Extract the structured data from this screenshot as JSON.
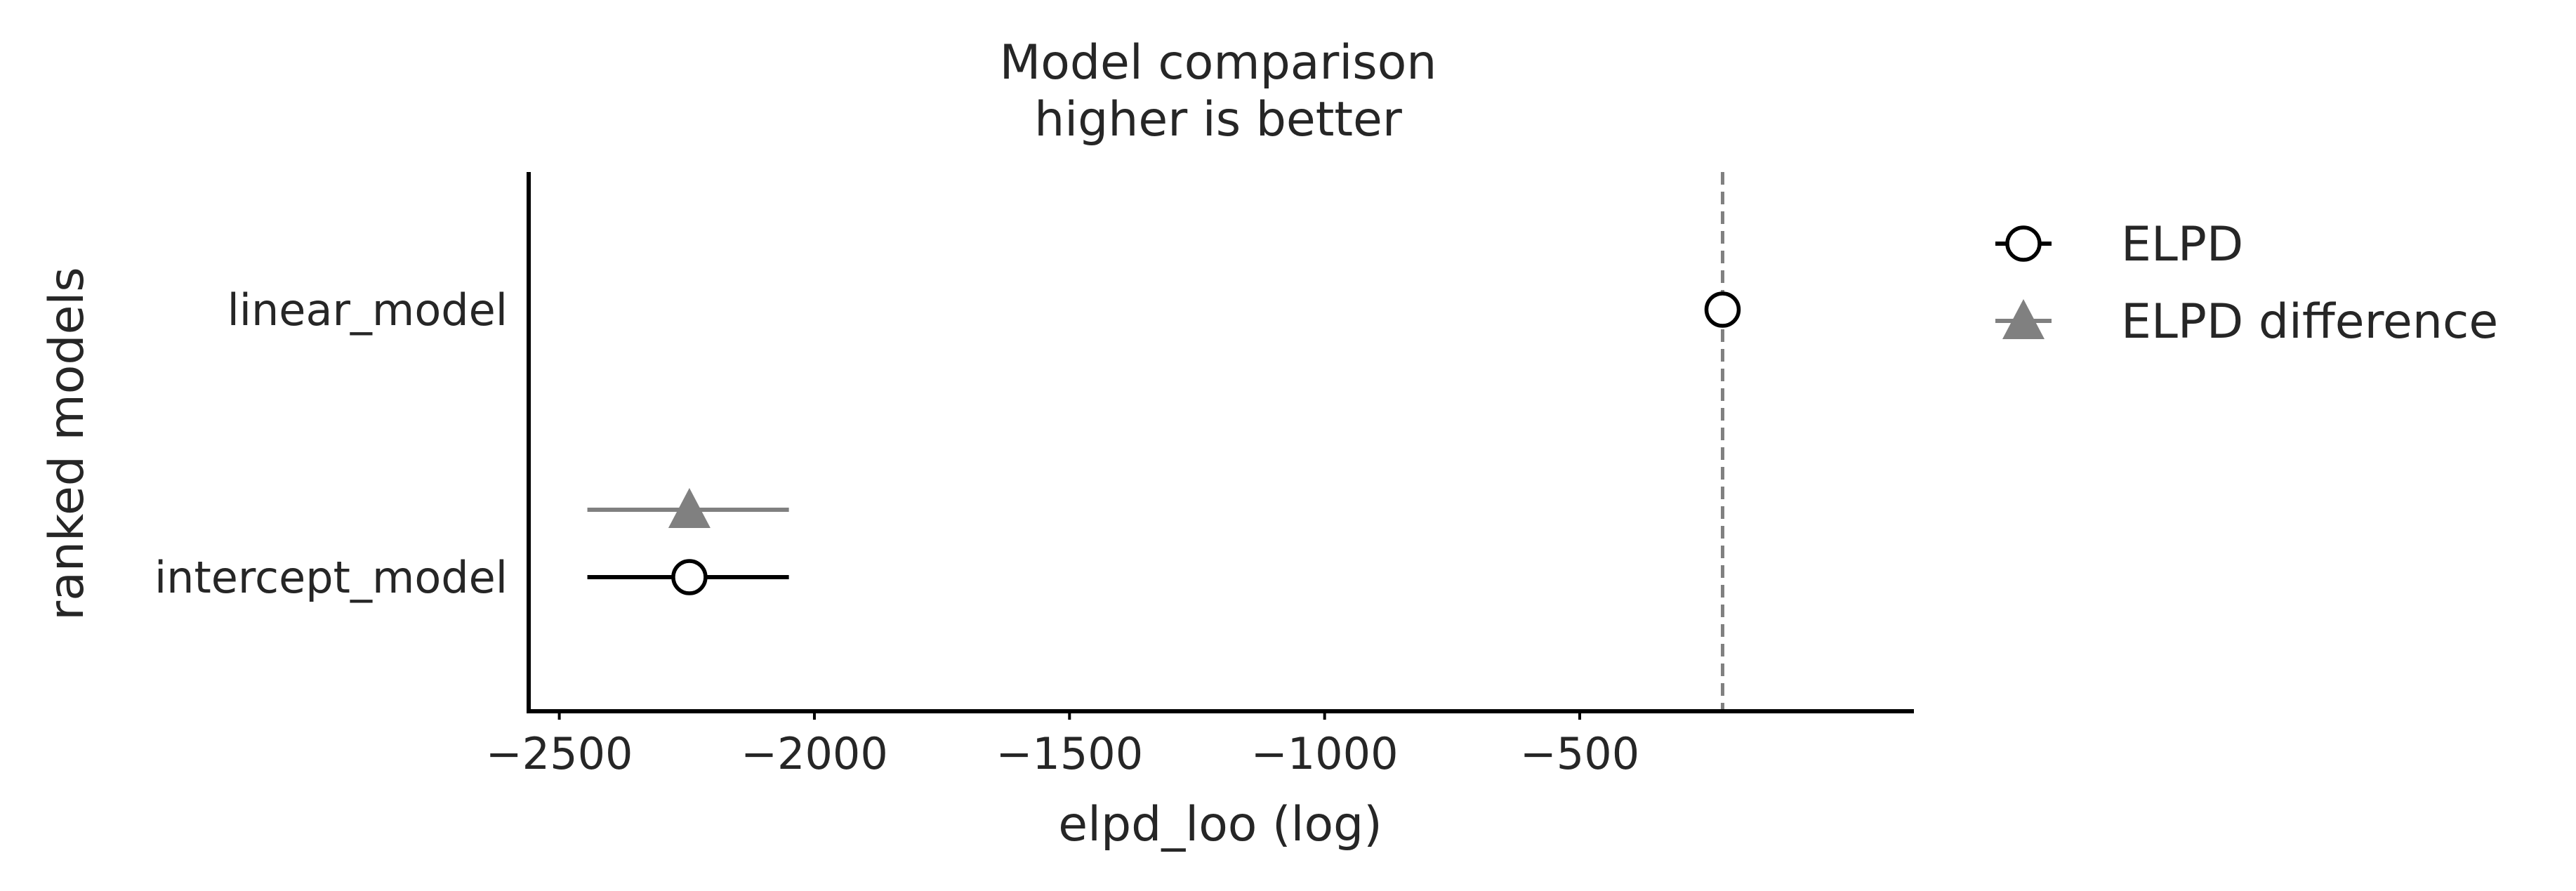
{
  "chart_data": {
    "type": "scatter",
    "title": [
      "Model comparison",
      "higher is better"
    ],
    "xlabel": "elpd_loo (log)",
    "ylabel": "ranked models",
    "xlim": [
      -2560,
      155
    ],
    "xticks": [
      -2500,
      -2000,
      -1500,
      -1000,
      -500
    ],
    "xtick_labels": [
      "−2500",
      "−2000",
      "−1500",
      "−1000",
      "−500"
    ],
    "categories": [
      "linear_model",
      "intercept_model"
    ],
    "reference_line": {
      "value": -220,
      "color": "#808080",
      "style": "dashed"
    },
    "grid": false,
    "legend_position": "outside-right",
    "series": [
      {
        "name": "ELPD",
        "marker": "open-circle",
        "color": "#000000",
        "points": [
          {
            "model": "linear_model",
            "value": -220,
            "lower": -220,
            "upper": -220
          },
          {
            "model": "intercept_model",
            "value": -2245,
            "lower": -2445,
            "upper": -2050
          }
        ]
      },
      {
        "name": "ELPD difference",
        "marker": "triangle",
        "color": "#808080",
        "points": [
          {
            "model": "intercept_model",
            "value": -2245,
            "lower": -2445,
            "upper": -2050
          }
        ]
      }
    ]
  }
}
